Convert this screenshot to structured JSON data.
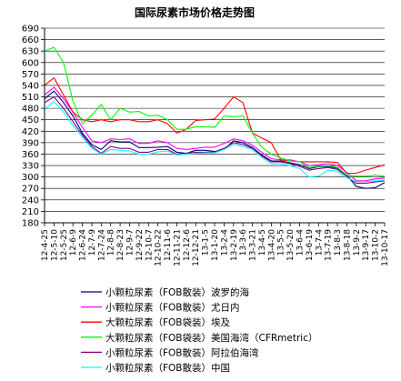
{
  "chart_data": {
    "type": "line",
    "title": "国际尿素市场价格走势图",
    "ylim": [
      180,
      690
    ],
    "yticks": [
      180,
      210,
      240,
      270,
      300,
      330,
      360,
      390,
      420,
      450,
      480,
      510,
      540,
      570,
      600,
      630,
      660,
      690
    ],
    "grid": true,
    "legend_position": "bottom",
    "categories": [
      "12-4-25",
      "12-5-10",
      "12-5-25",
      "12-6-9",
      "12-6-24",
      "12-7-9",
      "12-7-24",
      "12-8-8",
      "12-8-23",
      "12-9-7",
      "12-9-22",
      "12-10-7",
      "12-10-22",
      "12-11-6",
      "12-11-21",
      "12-12-6",
      "12-12-21",
      "13-1-5",
      "13-1-20",
      "13-2-4",
      "13-2-19",
      "13-3-6",
      "13-3-21",
      "13-4-5",
      "13-4-20",
      "13-5-5",
      "13-5-20",
      "13-6-4",
      "13-6-19",
      "13-7-4",
      "13-7-19",
      "13-8-3",
      "13-8-18",
      "13-9-2",
      "13-9-17",
      "13-10-2",
      "13-10-17"
    ],
    "series": [
      {
        "name": "小颗粒尿素（FOB散装）波罗的海",
        "color": "#000080",
        "values": [
          505,
          525,
          495,
          460,
          415,
          385,
          372,
          395,
          392,
          392,
          377,
          377,
          378,
          380,
          365,
          362,
          370,
          370,
          367,
          372,
          395,
          390,
          377,
          358,
          342,
          342,
          337,
          332,
          322,
          327,
          328,
          323,
          305,
          275,
          270,
          272,
          285
        ]
      },
      {
        "name": "小颗粒尿素（FOB散装）尤日内",
        "color": "#ff00ff",
        "values": [
          515,
          535,
          505,
          470,
          430,
          395,
          390,
          400,
          398,
          400,
          388,
          388,
          395,
          390,
          375,
          372,
          375,
          378,
          378,
          388,
          400,
          395,
          383,
          365,
          348,
          345,
          345,
          340,
          330,
          332,
          335,
          330,
          312,
          290,
          290,
          295,
          297
        ]
      },
      {
        "name": "大颗粒尿素（FOB袋装）埃及",
        "color": "#ff0000",
        "values": [
          540,
          560,
          515,
          470,
          450,
          445,
          450,
          445,
          450,
          450,
          445,
          445,
          450,
          440,
          415,
          425,
          448,
          450,
          452,
          480,
          510,
          495,
          415,
          402,
          390,
          345,
          342,
          340,
          340,
          340,
          340,
          338,
          310,
          310,
          318,
          325,
          332
        ]
      },
      {
        "name": "大颗粒尿素（FOB袋装）美国海湾（CFRmetric）",
        "color": "#00ff00",
        "values": [
          630,
          640,
          600,
          500,
          440,
          462,
          490,
          450,
          480,
          470,
          472,
          460,
          462,
          450,
          425,
          425,
          432,
          432,
          430,
          460,
          458,
          460,
          415,
          378,
          360,
          350,
          342,
          340,
          325,
          328,
          330,
          325,
          305,
          302,
          302,
          305,
          302
        ]
      },
      {
        "name": "小颗粒尿素（FOB散装）阿拉伯海湾",
        "color": "#800080",
        "values": [
          495,
          510,
          480,
          445,
          410,
          380,
          362,
          380,
          375,
          375,
          365,
          365,
          372,
          372,
          360,
          362,
          365,
          365,
          366,
          375,
          390,
          385,
          375,
          355,
          340,
          340,
          335,
          328,
          318,
          322,
          325,
          320,
          302,
          284,
          284,
          287,
          290
        ]
      },
      {
        "name": "小颗粒尿素（FOB散装）中国",
        "color": "#00ffff",
        "values": [
          478,
          498,
          470,
          435,
          405,
          375,
          360,
          372,
          370,
          368,
          360,
          360,
          366,
          368,
          358,
          360,
          362,
          363,
          363,
          372,
          385,
          380,
          372,
          352,
          335,
          335,
          330,
          322,
          300,
          302,
          318,
          315,
          298,
          288,
          288,
          290,
          292
        ]
      }
    ]
  }
}
